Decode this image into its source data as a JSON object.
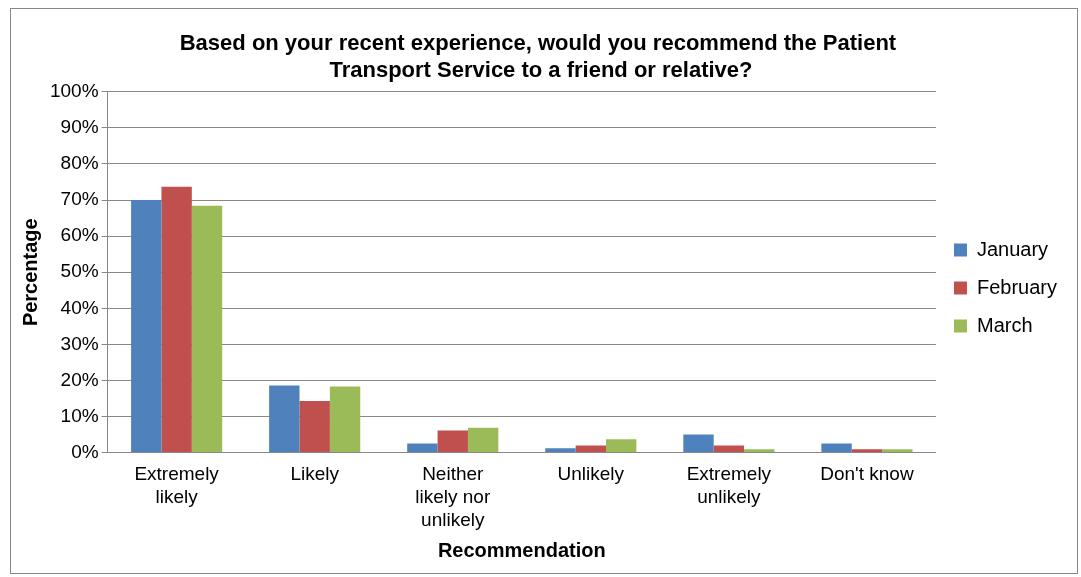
{
  "chart_data": {
    "type": "bar",
    "title": "Based on your recent experience, would you recommend the Patient Transport Service to a friend or relative?",
    "xlabel": "Recommendation",
    "ylabel": "Percentage",
    "categories": [
      "Extremely likely",
      "Likely",
      "Neither likely nor unlikely",
      "Unlikely",
      "Extremely unlikely",
      "Don't know"
    ],
    "series": [
      {
        "name": "January",
        "color": "#4f81bd",
        "values": [
          70,
          18.6,
          2.5,
          1.2,
          5,
          2.5
        ]
      },
      {
        "name": "February",
        "color": "#c0504d",
        "values": [
          73.7,
          14.3,
          6.1,
          2,
          2,
          0.9
        ]
      },
      {
        "name": "March",
        "color": "#9bbb59",
        "values": [
          68.4,
          18.3,
          6.9,
          3.7,
          0.9,
          0.9
        ]
      }
    ],
    "ylim": [
      0,
      100
    ],
    "yticks": [
      {
        "value": 0,
        "label": "0%"
      },
      {
        "value": 10,
        "label": "10%"
      },
      {
        "value": 20,
        "label": "20%"
      },
      {
        "value": 30,
        "label": "30%"
      },
      {
        "value": 40,
        "label": "40%"
      },
      {
        "value": 50,
        "label": "50%"
      },
      {
        "value": 60,
        "label": "60%"
      },
      {
        "value": 70,
        "label": "70%"
      },
      {
        "value": 80,
        "label": "80%"
      },
      {
        "value": 90,
        "label": "90%"
      },
      {
        "value": 100,
        "label": "100%"
      }
    ],
    "grid": "y",
    "legend": "right"
  }
}
